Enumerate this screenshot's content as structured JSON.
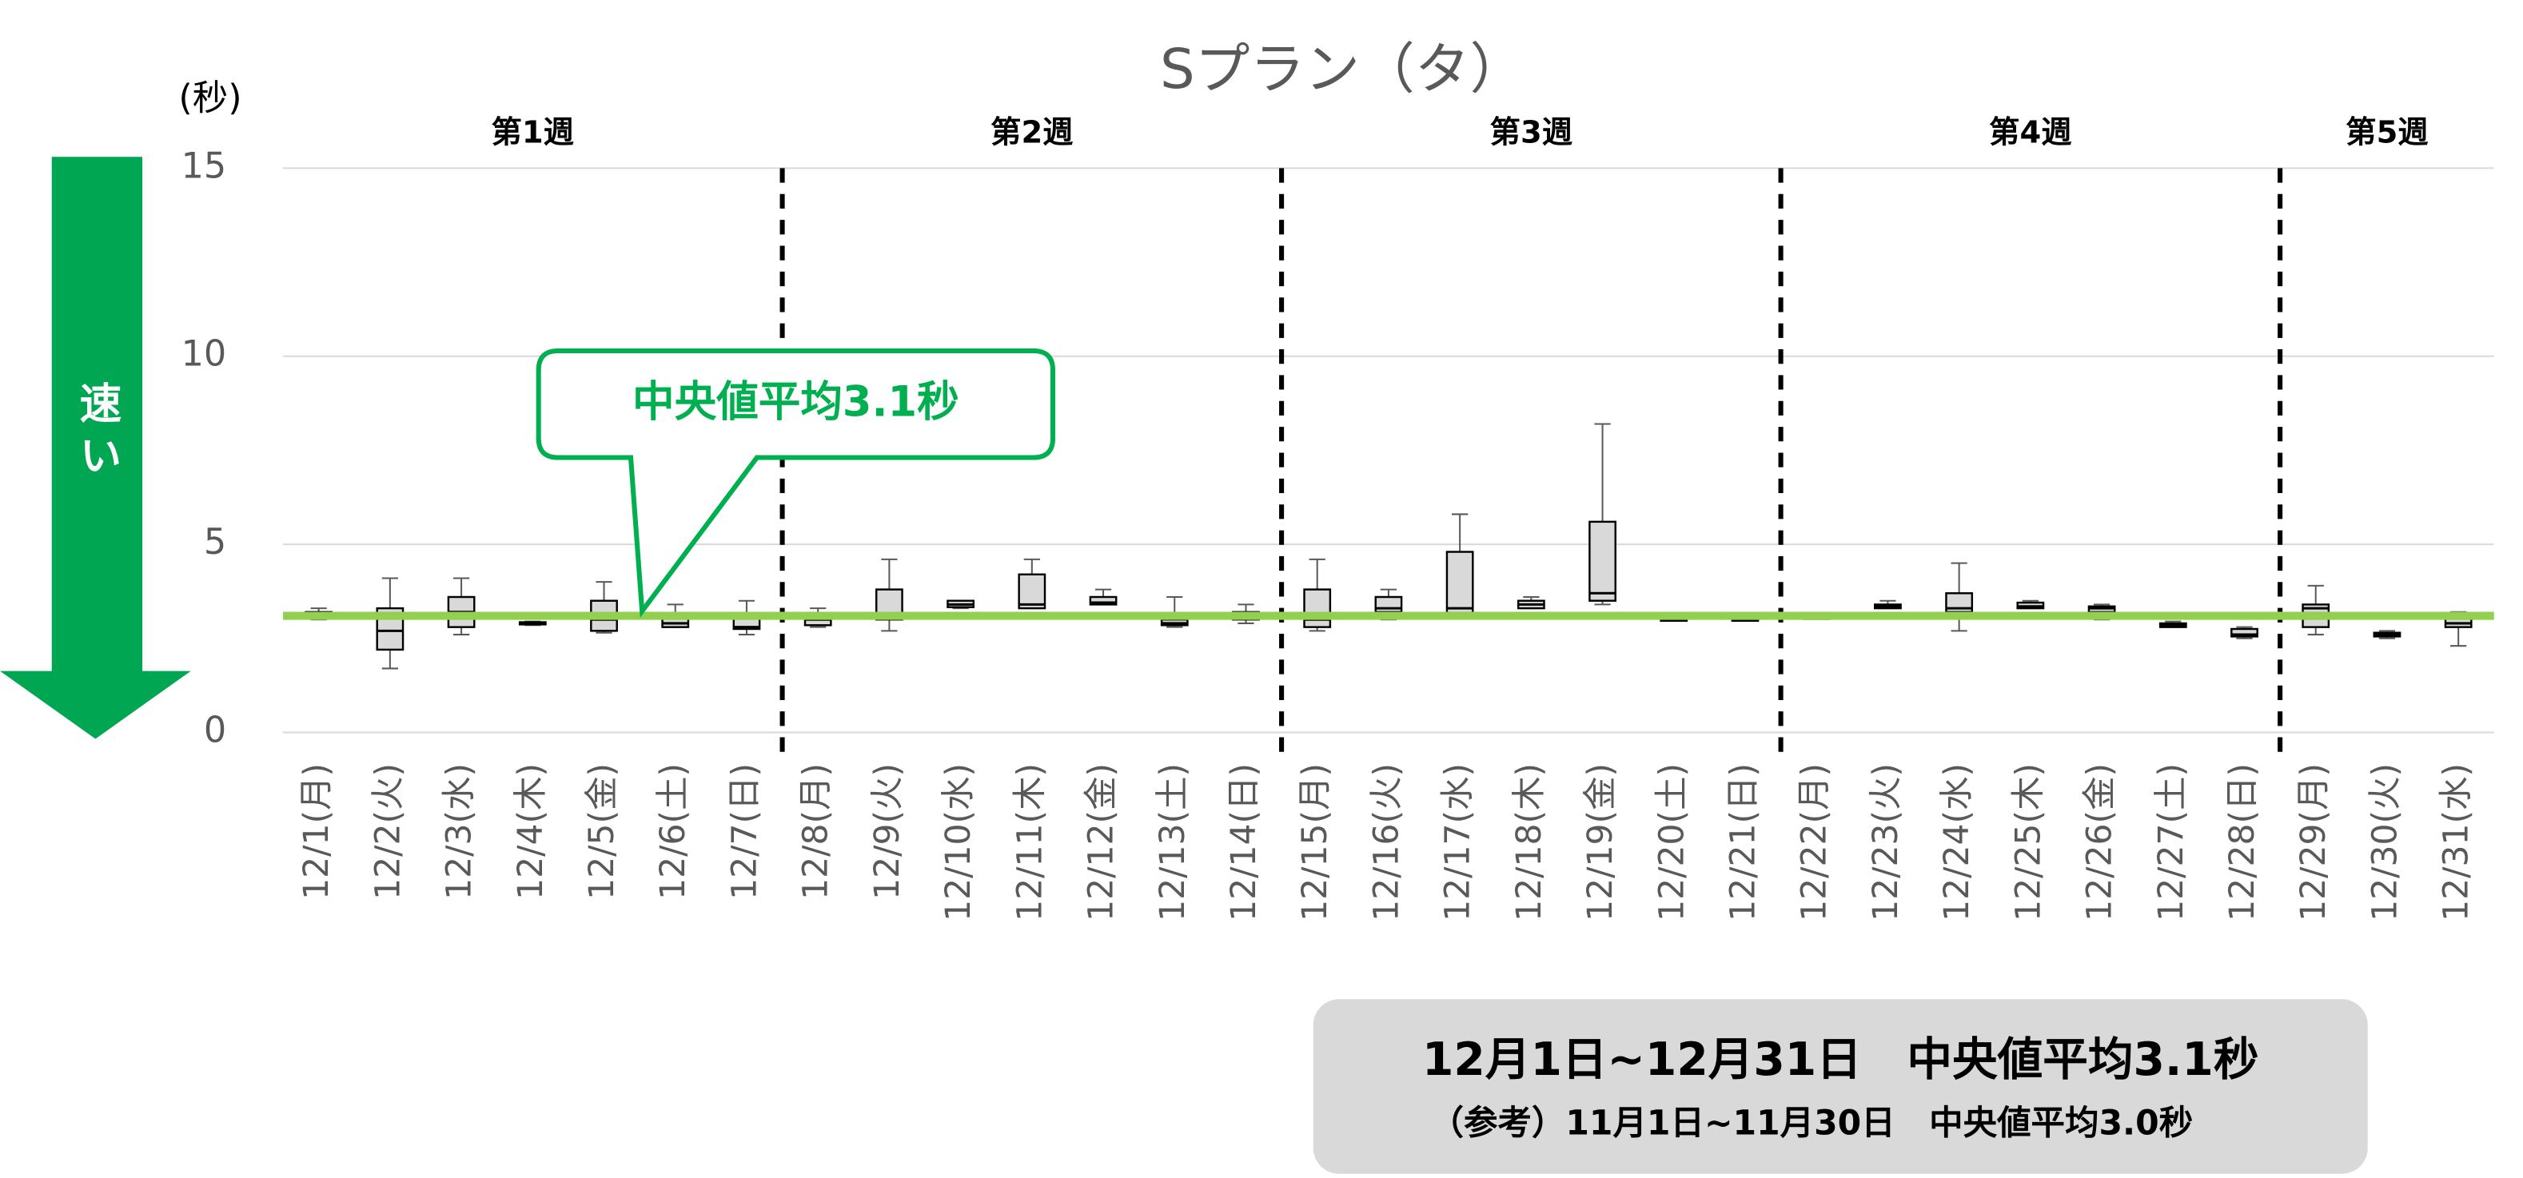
{
  "chart_data": {
    "type": "box",
    "title": "Sプラン（タ）",
    "y_label": "(秒)",
    "arrow_label": "速い",
    "categories": [
      "12/1(月)",
      "12/2(火)",
      "12/3(水)",
      "12/4(木)",
      "12/5(金)",
      "12/6(土)",
      "12/7(日)",
      "12/8(月)",
      "12/9(火)",
      "12/10(水)",
      "12/11(木)",
      "12/12(金)",
      "12/13(土)",
      "12/14(日)",
      "12/15(月)",
      "12/16(火)",
      "12/17(水)",
      "12/18(木)",
      "12/19(金)",
      "12/20(土)",
      "12/21(日)",
      "12/22(月)",
      "12/23(火)",
      "12/24(水)",
      "12/25(木)",
      "12/26(金)",
      "12/27(土)",
      "12/28(日)",
      "12/29(月)",
      "12/30(火)",
      "12/31(水)"
    ],
    "weeks": [
      "第1週",
      "第2週",
      "第3週",
      "第4週",
      "第5週"
    ],
    "boxes": [
      {
        "min": 3.0,
        "q1": 3.05,
        "median": 3.1,
        "q3": 3.2,
        "max": 3.3
      },
      {
        "min": 1.7,
        "q1": 2.2,
        "median": 2.7,
        "q3": 3.3,
        "max": 4.1
      },
      {
        "min": 2.6,
        "q1": 2.8,
        "median": 3.2,
        "q3": 3.6,
        "max": 4.1
      },
      {
        "min": 2.85,
        "q1": 2.87,
        "median": 2.9,
        "q3": 2.93,
        "max": 2.95
      },
      {
        "min": 2.65,
        "q1": 2.7,
        "median": 3.0,
        "q3": 3.5,
        "max": 4.0
      },
      {
        "min": 2.8,
        "q1": 2.8,
        "median": 2.9,
        "q3": 3.1,
        "max": 3.4
      },
      {
        "min": 2.6,
        "q1": 2.75,
        "median": 2.8,
        "q3": 3.1,
        "max": 3.5
      },
      {
        "min": 2.8,
        "q1": 2.85,
        "median": 3.0,
        "q3": 3.1,
        "max": 3.3
      },
      {
        "min": 2.7,
        "q1": 3.0,
        "median": 3.1,
        "q3": 3.8,
        "max": 4.6
      },
      {
        "min": 3.3,
        "q1": 3.33,
        "median": 3.4,
        "q3": 3.5,
        "max": 3.5
      },
      {
        "min": 3.3,
        "q1": 3.3,
        "median": 3.4,
        "q3": 4.2,
        "max": 4.6
      },
      {
        "min": 3.4,
        "q1": 3.4,
        "median": 3.45,
        "q3": 3.6,
        "max": 3.8
      },
      {
        "min": 2.8,
        "q1": 2.85,
        "median": 2.9,
        "q3": 3.0,
        "max": 3.6
      },
      {
        "min": 2.9,
        "q1": 3.0,
        "median": 3.1,
        "q3": 3.2,
        "max": 3.4
      },
      {
        "min": 2.7,
        "q1": 2.8,
        "median": 3.0,
        "q3": 3.8,
        "max": 4.6
      },
      {
        "min": 3.0,
        "q1": 3.2,
        "median": 3.3,
        "q3": 3.6,
        "max": 3.8
      },
      {
        "min": 3.1,
        "q1": 3.1,
        "median": 3.3,
        "q3": 4.8,
        "max": 5.8
      },
      {
        "min": 3.3,
        "q1": 3.3,
        "median": 3.4,
        "q3": 3.5,
        "max": 3.6
      },
      {
        "min": 3.4,
        "q1": 3.5,
        "median": 3.7,
        "q3": 5.6,
        "max": 8.2
      },
      {
        "min": 2.98,
        "q1": 2.99,
        "median": 3.0,
        "q3": 3.01,
        "max": 3.02
      },
      {
        "min": 2.98,
        "q1": 2.99,
        "median": 3.0,
        "q3": 3.01,
        "max": 3.02
      },
      {
        "min": 3.03,
        "q1": 3.04,
        "median": 3.05,
        "q3": 3.06,
        "max": 3.07
      },
      {
        "min": 3.3,
        "q1": 3.3,
        "median": 3.35,
        "q3": 3.4,
        "max": 3.5
      },
      {
        "min": 2.7,
        "q1": 3.2,
        "median": 3.3,
        "q3": 3.7,
        "max": 4.5
      },
      {
        "min": 3.3,
        "q1": 3.3,
        "median": 3.35,
        "q3": 3.45,
        "max": 3.5
      },
      {
        "min": 3.0,
        "q1": 3.2,
        "median": 3.3,
        "q3": 3.35,
        "max": 3.4
      },
      {
        "min": 2.8,
        "q1": 2.8,
        "median": 2.85,
        "q3": 2.9,
        "max": 2.95
      },
      {
        "min": 2.5,
        "q1": 2.55,
        "median": 2.6,
        "q3": 2.75,
        "max": 2.8
      },
      {
        "min": 2.6,
        "q1": 2.8,
        "median": 3.3,
        "q3": 3.4,
        "max": 3.9
      },
      {
        "min": 2.5,
        "q1": 2.55,
        "median": 2.6,
        "q3": 2.65,
        "max": 2.7
      },
      {
        "min": 2.3,
        "q1": 2.8,
        "median": 2.9,
        "q3": 3.1,
        "max": 3.2
      }
    ],
    "box_color": "#d9d9d9",
    "median_average": 3.1,
    "median_average_color": "#92d050",
    "callout": "中央値平均3.1秒",
    "summary": [
      "12月1日~12月31日　中央値平均3.1秒",
      "（参考）11月1日~11月30日　中央値平均3.0秒"
    ],
    "ylim": [
      0,
      15
    ],
    "yticks": [
      0,
      5,
      10,
      15
    ],
    "grid": true
  }
}
